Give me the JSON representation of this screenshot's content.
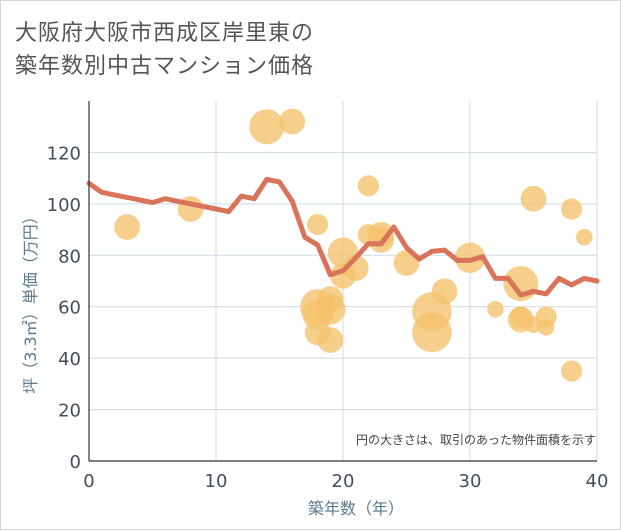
{
  "title_line1": "大阪府大阪市西成区岸里東の",
  "title_line2": "築年数別中古マンション価格",
  "note": "円の大きさは、取引のあった物件面積を示す",
  "colors": {
    "line": "#d9735a",
    "bubble": "#f5c26b",
    "grid": "#cfd9e3"
  },
  "chart_data": {
    "type": "scatter",
    "xlabel": "築年数（年）",
    "ylabel": "坪（3.3㎡）単価（万円）",
    "xlim": [
      0,
      40
    ],
    "ylim": [
      0,
      140
    ],
    "x_ticks": [
      "0",
      "10",
      "20",
      "30",
      "40"
    ],
    "y_ticks": [
      "0",
      "20",
      "40",
      "60",
      "80",
      "100",
      "120"
    ],
    "grid": true,
    "line": {
      "x": [
        0,
        1,
        2,
        3,
        4,
        5,
        6,
        7,
        8,
        9,
        10,
        11,
        12,
        13,
        14,
        15,
        16,
        17,
        18,
        19,
        20,
        21,
        22,
        23,
        24,
        25,
        26,
        27,
        28,
        29,
        30,
        31,
        32,
        33,
        34,
        35,
        36,
        37,
        38,
        39,
        40
      ],
      "y": [
        108,
        104.5,
        103.5,
        102.5,
        101.5,
        100.5,
        102,
        101,
        100,
        99,
        98,
        97,
        103,
        102,
        109.5,
        108.5,
        101,
        87,
        84,
        72.5,
        74,
        79,
        84.5,
        84.5,
        91,
        83,
        78.5,
        81.5,
        82,
        78,
        78,
        79.5,
        71,
        71,
        64.5,
        66,
        65,
        71,
        68.5,
        71,
        70
      ]
    },
    "bubbles": [
      {
        "x": 3,
        "y": 91,
        "size": 3
      },
      {
        "x": 8,
        "y": 98,
        "size": 3
      },
      {
        "x": 14,
        "y": 130,
        "size": 5
      },
      {
        "x": 16,
        "y": 132,
        "size": 3
      },
      {
        "x": 18,
        "y": 92,
        "size": 2
      },
      {
        "x": 18,
        "y": 60,
        "size": 5
      },
      {
        "x": 18,
        "y": 57,
        "size": 4
      },
      {
        "x": 18,
        "y": 50,
        "size": 3
      },
      {
        "x": 19,
        "y": 63,
        "size": 3
      },
      {
        "x": 19,
        "y": 59,
        "size": 4
      },
      {
        "x": 19,
        "y": 47,
        "size": 3
      },
      {
        "x": 20,
        "y": 81,
        "size": 4
      },
      {
        "x": 20,
        "y": 72,
        "size": 3
      },
      {
        "x": 21,
        "y": 75,
        "size": 3
      },
      {
        "x": 22,
        "y": 107,
        "size": 2
      },
      {
        "x": 22,
        "y": 88,
        "size": 2
      },
      {
        "x": 23,
        "y": 88,
        "size": 3
      },
      {
        "x": 23,
        "y": 86,
        "size": 3
      },
      {
        "x": 25,
        "y": 77,
        "size": 3
      },
      {
        "x": 27,
        "y": 58,
        "size": 6
      },
      {
        "x": 27,
        "y": 50,
        "size": 6
      },
      {
        "x": 28,
        "y": 66,
        "size": 3
      },
      {
        "x": 30,
        "y": 79,
        "size": 4
      },
      {
        "x": 32,
        "y": 59,
        "size": 1
      },
      {
        "x": 34,
        "y": 69,
        "size": 5
      },
      {
        "x": 34,
        "y": 55,
        "size": 3
      },
      {
        "x": 34,
        "y": 56,
        "size": 2
      },
      {
        "x": 35,
        "y": 102,
        "size": 3
      },
      {
        "x": 35,
        "y": 53,
        "size": 1
      },
      {
        "x": 36,
        "y": 56,
        "size": 2
      },
      {
        "x": 36,
        "y": 52,
        "size": 1
      },
      {
        "x": 38,
        "y": 98,
        "size": 2
      },
      {
        "x": 38,
        "y": 35,
        "size": 2
      },
      {
        "x": 39,
        "y": 87,
        "size": 1
      }
    ]
  }
}
